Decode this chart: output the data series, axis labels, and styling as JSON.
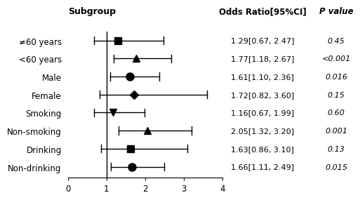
{
  "subgroups": [
    "≠60 years",
    "<60 years",
    "Male",
    "Female",
    "Smoking",
    "Non-smoking",
    "Drinking",
    "Non-drinking"
  ],
  "or_values": [
    1.29,
    1.77,
    1.61,
    1.72,
    1.16,
    2.05,
    1.63,
    1.66
  ],
  "ci_lower": [
    0.67,
    1.18,
    1.1,
    0.82,
    0.67,
    1.32,
    0.86,
    1.11
  ],
  "ci_upper": [
    2.47,
    2.67,
    2.36,
    3.6,
    1.99,
    3.2,
    3.1,
    2.49
  ],
  "or_labels": [
    "1.29[0.67, 2.47]",
    "1.77[1.18, 2.67]",
    "1.61[1.10, 2.36]",
    "1.72[0.82, 3.60]",
    "1.16[0.67, 1.99]",
    "2.05[1.32, 3.20]",
    "1.63[0.86, 3.10]",
    "1.66[1.11, 2.49]"
  ],
  "p_labels": [
    "0.45",
    "<0.001",
    "0.016",
    "0.15",
    "0.60",
    "0.001",
    "0.13",
    "0.015"
  ],
  "markers": [
    "s",
    "^",
    "o",
    "D",
    "v",
    "^",
    "s",
    "o"
  ],
  "marker_sizes": [
    7,
    7,
    8,
    6,
    7,
    7,
    7,
    8
  ],
  "xlim": [
    0,
    4
  ],
  "xticks": [
    0,
    1,
    2,
    3,
    4
  ],
  "color": "#000000",
  "header_subgroup": "Subgroup",
  "header_or": "Odds Ratio[95%CI]",
  "header_p": "P value"
}
